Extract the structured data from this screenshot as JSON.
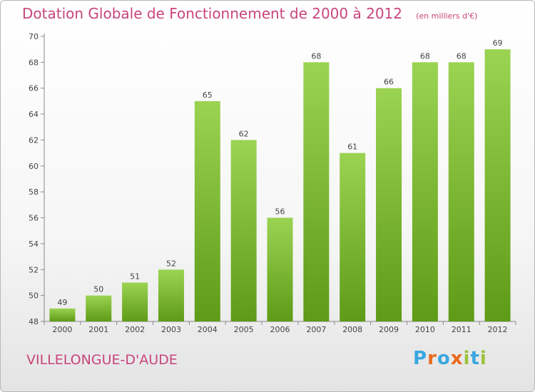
{
  "header": {
    "title": "Dotation Globale de Fonctionnement de 2000 à 2012",
    "unit": "(en milliers d'€)"
  },
  "footer": {
    "commune": "VILLELONGUE-D'AUDE",
    "logo_text": "Proxiti"
  },
  "colors": {
    "title": "#c8457c",
    "bar_top": "#9bd352",
    "bar_bottom": "#5e9b16",
    "logo": [
      "#3aa7e0",
      "#e86a1c",
      "#3aa7e0",
      "#e86a1c",
      "#9ac23c",
      "#3aa7e0",
      "#9ac23c"
    ]
  },
  "chart_data": {
    "type": "bar",
    "title": "Dotation Globale de Fonctionnement de 2000 à 2012",
    "subtitle": "(en milliers d'€)",
    "xlabel": "",
    "ylabel": "",
    "categories": [
      "2000",
      "2001",
      "2002",
      "2003",
      "2004",
      "2005",
      "2006",
      "2007",
      "2008",
      "2009",
      "2010",
      "2011",
      "2012"
    ],
    "values": [
      49,
      50,
      51,
      52,
      65,
      62,
      56,
      68,
      61,
      66,
      68,
      68,
      69
    ],
    "ylim": [
      48,
      70
    ],
    "yticks": [
      48,
      50,
      52,
      54,
      56,
      58,
      60,
      62,
      64,
      66,
      68,
      70
    ],
    "grid": false,
    "data_labels": true
  }
}
